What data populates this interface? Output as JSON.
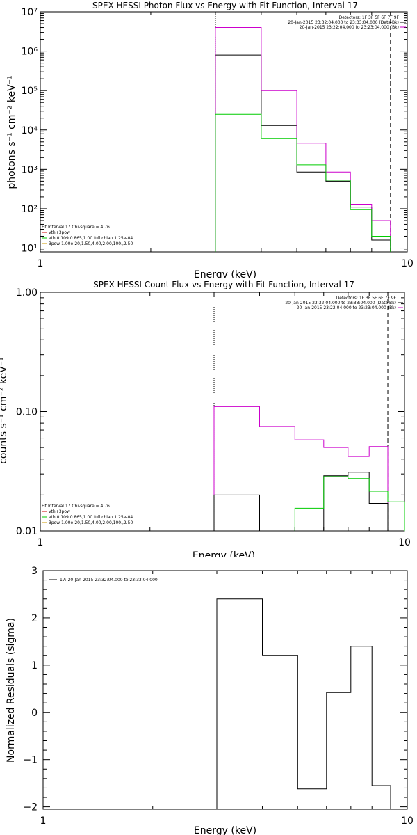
{
  "chart_data": [
    {
      "type": "line",
      "title": "SPEX HESSI Photon Flux vs Energy with Fit Function, Interval 17",
      "xlabel": "Energy (keV)",
      "ylabel": "photons s⁻¹ cm⁻² keV⁻¹",
      "xscale": "log",
      "yscale": "log",
      "xlim": [
        1,
        10
      ],
      "ylim": [
        8,
        10000000
      ],
      "xtick_labels": [
        "1",
        "10"
      ],
      "ytick_labels": [
        "10¹",
        "10²",
        "10³",
        "10⁴",
        "10⁵",
        "10⁶",
        "10⁷"
      ],
      "legend_top": [
        "Detectors: 1F 3F 5F 6F 7F 9F",
        "20-Jan-2015 23:32:04.000 to 23:33:04.000 (Data-Bk)",
        "20-Jan-2015 23:22:04.000 to 23:23:04.000 (Bk)"
      ],
      "legend_bottom": [
        "Fit Interval 17    Chi-square = 4.76",
        "vth+3pow",
        "vth 0.109,0.865,1.00  full chian 1.25e-04",
        "3pow 1.00e-20,1.50,4.00,2.00,100.,2.50"
      ],
      "legend_colors": [
        "#cc0000",
        "#00cc00",
        "#cc9900"
      ],
      "vlines": [
        {
          "x": 3.0,
          "style": "dotted"
        },
        {
          "x": 9.0,
          "style": "dashed"
        }
      ],
      "series": [
        {
          "color": "#000000",
          "edges": [
            3.0,
            4.0,
            5.0,
            6.0,
            7.0,
            8.0,
            9.0
          ],
          "values": [
            800000,
            13000,
            850,
            500,
            110,
            16
          ]
        },
        {
          "color": "#cc00cc",
          "edges": [
            3.0,
            4.0,
            5.0,
            6.0,
            7.0,
            8.0,
            9.0
          ],
          "values": [
            4000000,
            100000,
            4600,
            850,
            130,
            50
          ]
        },
        {
          "color": "#00cc00",
          "edges": [
            3.0,
            4.0,
            5.0,
            6.0,
            7.0,
            8.0,
            9.0
          ],
          "values": [
            25000,
            6000,
            1300,
            530,
            95,
            20
          ]
        }
      ]
    },
    {
      "type": "line",
      "title": "SPEX HESSI Count Flux vs Energy with Fit Function, Interval 17",
      "xlabel": "Energy (keV)",
      "ylabel": "counts s⁻¹ cm⁻² keV⁻¹",
      "xscale": "log",
      "yscale": "log",
      "xlim": [
        1,
        10
      ],
      "ylim": [
        0.01,
        1.0
      ],
      "xtick_labels": [
        "1",
        "10"
      ],
      "ytick_labels": [
        "0.01",
        "0.10",
        "1.00"
      ],
      "legend_top": [
        "Detectors: 1F 3F 5F 6F 7F 9F",
        "20-Jan-2015 23:32:04.000 to 23:33:04.000 (Data-Bk)",
        "20-Jan-2015 23:22:04.000 to 23:23:04.000 (Bk)"
      ],
      "legend_bottom": [
        "Fit Interval 17    Chi-square = 4.76",
        "vth+3pow",
        "vth 0.109,0.865,1.00  full chian 1.25e-04",
        "3pow 1.00e-20,1.50,4.00,2.00,100.,2.50"
      ],
      "legend_colors": [
        "#cc0000",
        "#00cc00",
        "#cc9900"
      ],
      "vlines": [
        {
          "x": 3.0,
          "style": "dotted"
        },
        {
          "x": 9.0,
          "style": "dashed"
        }
      ],
      "series": [
        {
          "color": "#cc00cc",
          "edges": [
            3.0,
            4.0,
            5.0,
            6.0,
            7.0,
            8.0,
            9.0
          ],
          "values": [
            0.11,
            0.075,
            0.058,
            0.05,
            0.042,
            0.051
          ]
        },
        {
          "color": "#000000",
          "edges": [
            3.0,
            4.0,
            5.0,
            6.0,
            7.0,
            8.0,
            9.0
          ],
          "values": [
            0.02,
            0.0075,
            0.0102,
            0.029,
            0.031,
            0.017
          ]
        },
        {
          "color": "#00cc00",
          "edges": [
            5.0,
            6.0,
            7.0,
            8.0,
            9.0,
            10.0
          ],
          "values": [
            0.0155,
            0.0285,
            0.0275,
            0.0215,
            0.0175
          ]
        }
      ]
    },
    {
      "type": "line",
      "title": "",
      "xlabel": "Energy (keV)",
      "ylabel": "Normalized Residuals (sigma)",
      "xscale": "log",
      "yscale": "linear",
      "xlim": [
        1,
        10
      ],
      "ylim": [
        -2.05,
        3.0
      ],
      "xtick_labels": [
        "1",
        "10"
      ],
      "ytick_labels": [
        "−2",
        "−1",
        "0",
        "1",
        "2",
        "3"
      ],
      "legend_top": [
        "17: 20-Jan-2015 23:32:04.000 to 23:33:04.000"
      ],
      "series": [
        {
          "color": "#000000",
          "edges": [
            3.0,
            4.0,
            5.0,
            6.0,
            7.0,
            8.0,
            9.0
          ],
          "values": [
            2.4,
            1.2,
            -1.62,
            0.42,
            1.4,
            -1.55
          ]
        }
      ]
    }
  ]
}
